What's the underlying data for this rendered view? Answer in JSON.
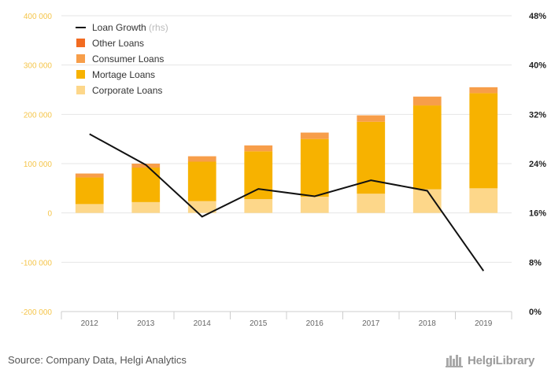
{
  "chart_data": {
    "type": "bar",
    "categories": [
      "2012",
      "2013",
      "2014",
      "2015",
      "2016",
      "2017",
      "2018",
      "2019"
    ],
    "series": [
      {
        "name": "Corporate Loans",
        "kind": "stacked-bar",
        "axis": "left",
        "color": "#FDD78A",
        "values": [
          18000,
          22000,
          24000,
          28000,
          33000,
          39000,
          48000,
          50000
        ]
      },
      {
        "name": "Mortage Loans",
        "kind": "stacked-bar",
        "axis": "left",
        "color": "#F7B200",
        "values": [
          54000,
          70000,
          80000,
          97000,
          117000,
          146000,
          170000,
          193000
        ]
      },
      {
        "name": "Consumer Loans",
        "kind": "stacked-bar",
        "axis": "left",
        "color": "#F79E4A",
        "values": [
          8000,
          8000,
          11000,
          12000,
          13000,
          13000,
          18000,
          12000
        ]
      },
      {
        "name": "Other Loans",
        "kind": "stacked-bar",
        "axis": "left",
        "color": "#F26B21",
        "values": [
          0,
          0,
          0,
          0,
          0,
          0,
          0,
          0
        ]
      },
      {
        "name": "Loan Growth",
        "kind": "line",
        "axis": "right",
        "color": "#111111",
        "values": [
          28.8,
          23.8,
          15.4,
          19.9,
          18.7,
          21.3,
          19.6,
          6.6
        ]
      }
    ],
    "legend": [
      {
        "label": "Loan Growth",
        "suffix": "(rhs)",
        "swatch": "line",
        "color": "#111111"
      },
      {
        "label": "Other Loans",
        "swatch": "box",
        "color": "#F26B21"
      },
      {
        "label": "Consumer Loans",
        "swatch": "box",
        "color": "#F79E4A"
      },
      {
        "label": "Mortage Loans",
        "swatch": "box",
        "color": "#F7B200"
      },
      {
        "label": "Corporate Loans",
        "swatch": "box",
        "color": "#FDD78A"
      }
    ],
    "y_left": {
      "ylim": [
        -200000,
        400000
      ],
      "ticks": [
        400000,
        300000,
        200000,
        100000,
        0,
        -100000,
        -200000
      ],
      "tick_labels": [
        "400 000",
        "300 000",
        "200 000",
        "100 000",
        "0",
        "-100 000",
        "-200 000"
      ]
    },
    "y_right": {
      "ylim": [
        0,
        48
      ],
      "ticks": [
        48,
        40,
        32,
        24,
        16,
        8,
        0
      ],
      "tick_labels": [
        "48%",
        "40%",
        "32%",
        "24%",
        "16%",
        "8%",
        "0%"
      ]
    },
    "grid": true,
    "legend_position": "top-left"
  },
  "footer": {
    "source": "Source: Company Data, Helgi Analytics",
    "brand": "HelgiLibrary"
  },
  "colors": {
    "left_tick": "#F5C54A",
    "grid": "#e6e6e6",
    "axis_tick": "#666666"
  }
}
